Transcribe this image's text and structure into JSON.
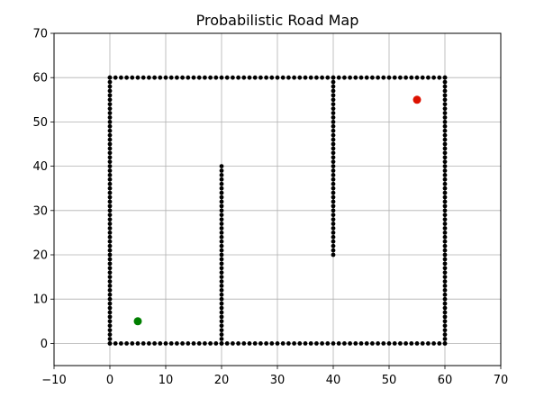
{
  "chart_data": {
    "type": "scatter",
    "title": "Probabilistic Road Map",
    "xlabel": "",
    "ylabel": "",
    "xlim": [
      -10,
      70
    ],
    "ylim": [
      -5,
      70
    ],
    "xticks": [
      -10,
      0,
      10,
      20,
      30,
      40,
      50,
      60,
      70
    ],
    "yticks": [
      0,
      10,
      20,
      30,
      40,
      50,
      60,
      70
    ],
    "grid": true,
    "obstacles": {
      "color": "#000000",
      "segments": [
        {
          "from": [
            0,
            0
          ],
          "to": [
            60,
            0
          ]
        },
        {
          "from": [
            60,
            0
          ],
          "to": [
            60,
            60
          ]
        },
        {
          "from": [
            0,
            60
          ],
          "to": [
            60,
            60
          ]
        },
        {
          "from": [
            0,
            0
          ],
          "to": [
            0,
            60
          ]
        },
        {
          "from": [
            20,
            0
          ],
          "to": [
            20,
            40
          ]
        },
        {
          "from": [
            40,
            20
          ],
          "to": [
            40,
            60
          ]
        }
      ]
    },
    "start": {
      "x": 5,
      "y": 5,
      "color": "#007f00"
    },
    "goal": {
      "x": 55,
      "y": 55,
      "color": "#dd1100"
    }
  }
}
